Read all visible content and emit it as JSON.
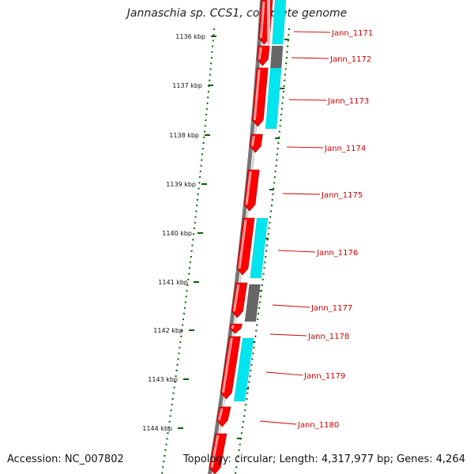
{
  "title": "Jannaschia sp. CCS1, complete genome",
  "footer": {
    "accession": "Accession: NC_007802",
    "topology": "Topology: circular; Length: 4,317,977 bp; Genes: 4,264"
  },
  "colors": {
    "gene": "#ff0000",
    "cog_cyan": "#00e5ee",
    "cog_gray": "#666666",
    "ruler_tick": "#006400",
    "backbone": "#777777",
    "label": "#cc0000"
  },
  "kbp_ticks": [
    "1136 kbp",
    "1137 kbp",
    "1138 kbp",
    "1139 kbp",
    "1140 kbp",
    "1141 kbp",
    "1142 kbp",
    "1143 kbp",
    "1144 kbp"
  ],
  "genes": [
    {
      "label": "Jann_1171",
      "cog": "cyan"
    },
    {
      "label": "Jann_1172",
      "cog": "gray"
    },
    {
      "label": "Jann_1173",
      "cog": "cyan"
    },
    {
      "label": "Jann_1174",
      "cog": "none"
    },
    {
      "label": "Jann_1175",
      "cog": "none"
    },
    {
      "label": "Jann_1176",
      "cog": "cyan"
    },
    {
      "label": "Jann_1177",
      "cog": "gray"
    },
    {
      "label": "Jann_1178",
      "cog": "none"
    },
    {
      "label": "Jann_1179",
      "cog": "cyan"
    },
    {
      "label": "Jann_1180",
      "cog": "none"
    }
  ]
}
